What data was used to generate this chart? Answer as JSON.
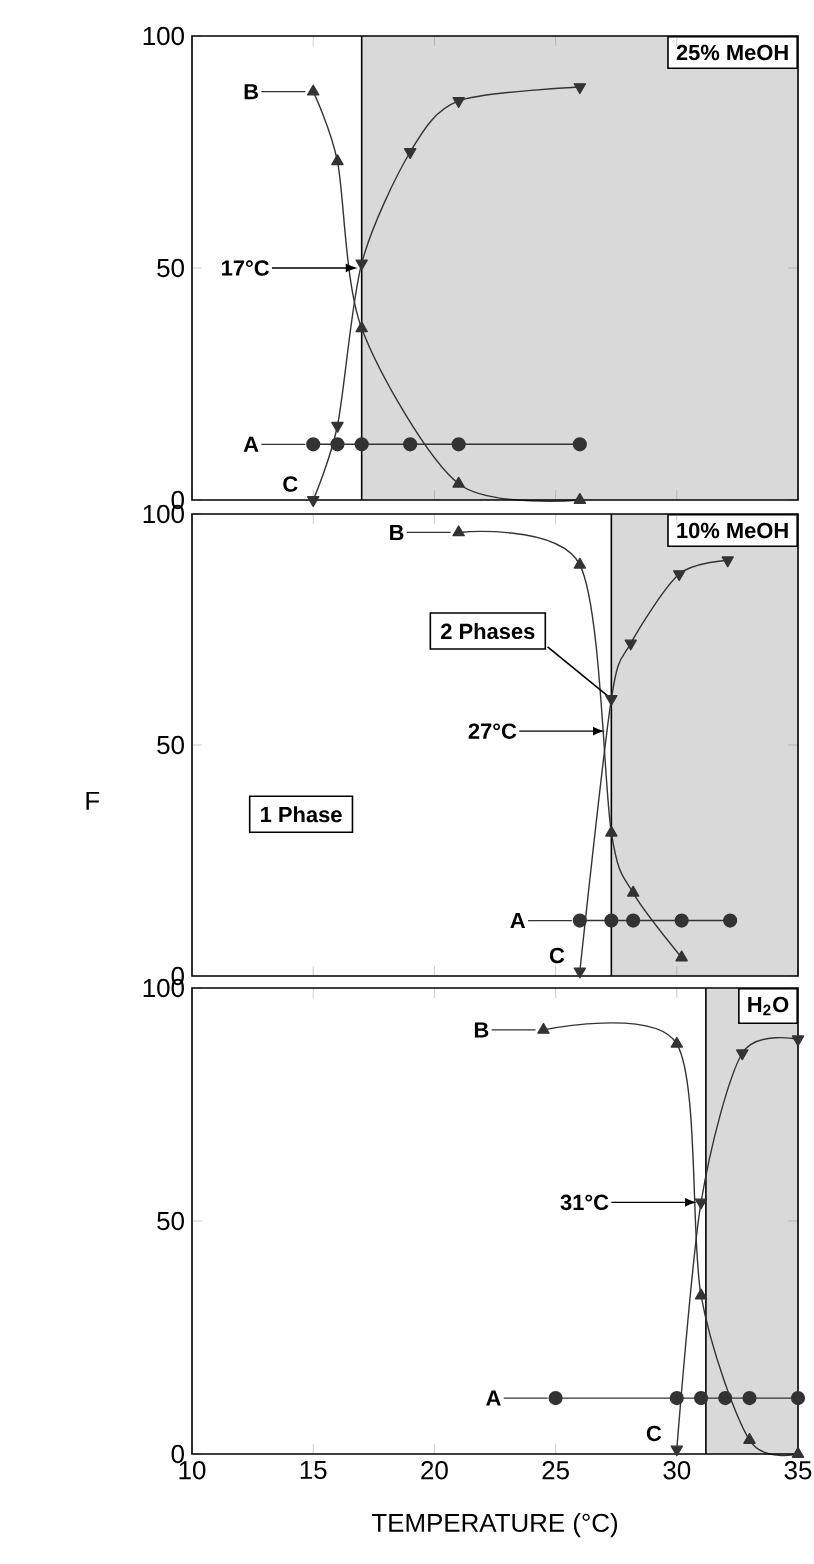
{
  "chart_data": [
    {
      "type": "line",
      "title": "25% MeOH",
      "xlim": [
        10,
        35
      ],
      "ylim": [
        0,
        100
      ],
      "xticks": [
        10,
        15,
        20,
        25,
        30,
        35
      ],
      "yticks": [
        0,
        50,
        100
      ],
      "tick_labels": "y",
      "line_style": "solid",
      "bands": [
        {
          "axis": "x",
          "from": 17,
          "to": 35,
          "color": "#d9d9d9"
        }
      ],
      "ref_lines": [
        {
          "axis": "x",
          "value": 17,
          "color": "#000000"
        }
      ],
      "legend": "left",
      "annotations": [
        {
          "text": "17°C",
          "x": 17,
          "y": 50
        }
      ],
      "series": [
        {
          "name": "A",
          "color": "#333333",
          "marker": "circle",
          "x": [
            15,
            16,
            17,
            19,
            21,
            26
          ],
          "values": [
            12,
            12,
            12,
            12,
            12,
            12
          ]
        },
        {
          "name": "B",
          "color": "#333333",
          "marker": "triangle",
          "x": [
            15,
            16,
            17,
            21,
            26
          ],
          "values": [
            88,
            73,
            37,
            3.5,
            0
          ]
        },
        {
          "name": "C",
          "color": "#333333",
          "marker": "triangle-down",
          "x": [
            15,
            16,
            17,
            19,
            21,
            26
          ],
          "values": [
            0,
            16,
            51,
            75,
            86,
            89
          ]
        }
      ]
    },
    {
      "type": "line",
      "title": "10% MeOH",
      "ylabel": "F",
      "xlim": [
        10,
        35
      ],
      "ylim": [
        0,
        100
      ],
      "xticks": [
        10,
        15,
        20,
        25,
        30,
        35
      ],
      "yticks": [
        0,
        50,
        100
      ],
      "tick_labels": "y",
      "line_style": "solid",
      "bands": [
        {
          "axis": "x",
          "from": 27.3,
          "to": 35,
          "color": "#d9d9d9"
        }
      ],
      "ref_lines": [
        {
          "axis": "x",
          "value": 27.3,
          "color": "#000000"
        }
      ],
      "legend": "left",
      "annotations": [
        {
          "text": "2 Phases",
          "x": 27.3,
          "y": 60
        },
        {
          "text": "27°C",
          "x": 27.2,
          "y": 53
        },
        "1 Phase"
      ],
      "series": [
        {
          "name": "A",
          "color": "#333333",
          "marker": "circle",
          "x": [
            26,
            27.3,
            28.2,
            30.2,
            32.2
          ],
          "values": [
            12,
            12,
            12,
            12,
            12
          ]
        },
        {
          "name": "B",
          "color": "#333333",
          "marker": "triangle",
          "x": [
            21,
            26,
            27.3,
            28.2,
            30.2
          ],
          "values": [
            96,
            89,
            31,
            18,
            4
          ]
        },
        {
          "name": "C",
          "color": "#333333",
          "marker": "triangle-down",
          "x": [
            26,
            27.3,
            28.1,
            30.1,
            32.1
          ],
          "values": [
            1,
            60,
            72,
            87,
            90
          ]
        }
      ]
    },
    {
      "type": "line",
      "title": "H$_{2}$O",
      "xlabel": "TEMPERATURE (°C)",
      "xlim": [
        10,
        35
      ],
      "ylim": [
        0,
        100
      ],
      "xticks": [
        10,
        15,
        20,
        25,
        30,
        35
      ],
      "yticks": [
        0,
        50,
        100
      ],
      "line_style": "solid",
      "bands": [
        {
          "axis": "x",
          "from": 31.2,
          "to": 35,
          "color": "#d9d9d9"
        }
      ],
      "ref_lines": [
        {
          "axis": "x",
          "value": 31.2,
          "color": "#000000"
        }
      ],
      "legend": "left",
      "annotations": [
        {
          "text": "31°C",
          "x": 31,
          "y": 54
        }
      ],
      "series": [
        {
          "name": "A",
          "color": "#333333",
          "marker": "circle",
          "x": [
            25,
            30,
            31,
            32,
            33,
            35
          ],
          "values": [
            12,
            12,
            12,
            12,
            12,
            12
          ]
        },
        {
          "name": "B",
          "color": "#333333",
          "marker": "triangle",
          "x": [
            24.5,
            30,
            31,
            33,
            35
          ],
          "values": [
            91,
            88,
            34,
            3,
            0
          ]
        },
        {
          "name": "C",
          "color": "#333333",
          "marker": "triangle-down",
          "x": [
            30,
            31,
            32.7,
            35
          ],
          "values": [
            1,
            54,
            86,
            89
          ]
        }
      ]
    }
  ]
}
